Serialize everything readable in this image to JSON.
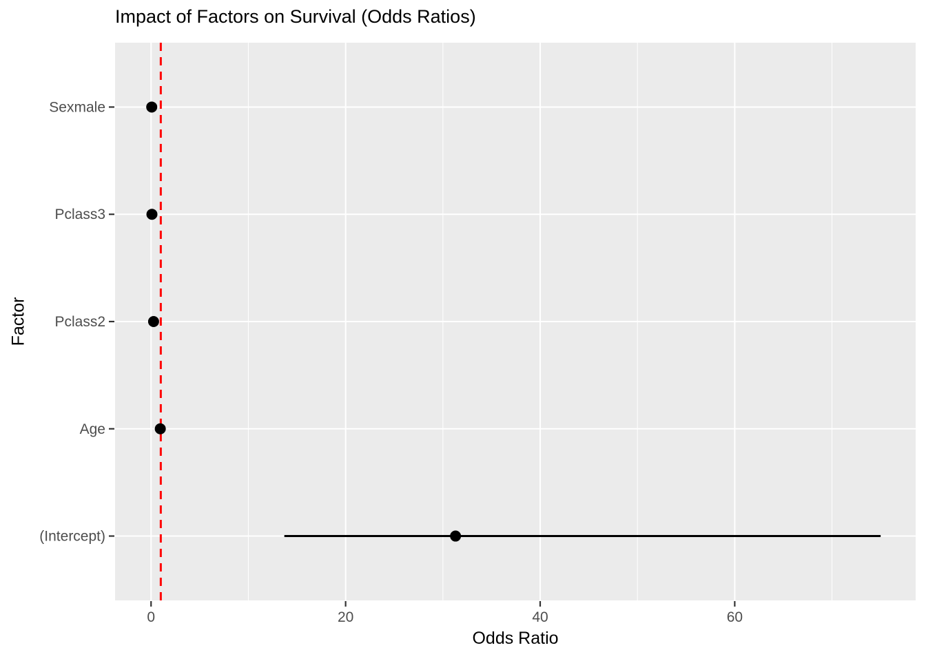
{
  "chart_data": {
    "type": "scatter",
    "chart_style": "forest-plot-dot-and-whisker",
    "title": "Impact of Factors on Survival (Odds Ratios)",
    "xlabel": "Odds Ratio",
    "ylabel": "Factor",
    "categories_bottom_to_top": [
      "(Intercept)",
      "Age",
      "Pclass2",
      "Pclass3",
      "Sexmale"
    ],
    "points": [
      {
        "factor": "(Intercept)",
        "odds_ratio": 31.3,
        "ci_low": 13.7,
        "ci_high": 75.0
      },
      {
        "factor": "Age",
        "odds_ratio": 0.95,
        "ci_low": null,
        "ci_high": null
      },
      {
        "factor": "Pclass2",
        "odds_ratio": 0.26,
        "ci_low": null,
        "ci_high": null
      },
      {
        "factor": "Pclass3",
        "odds_ratio": 0.09,
        "ci_low": null,
        "ci_high": null
      },
      {
        "factor": "Sexmale",
        "odds_ratio": 0.07,
        "ci_low": null,
        "ci_high": null
      }
    ],
    "x_major_ticks": [
      0,
      20,
      40,
      60
    ],
    "x_minor_ticks": [
      10,
      30,
      50,
      70
    ],
    "xlim": [
      -3.7,
      78.6
    ],
    "reference_line": {
      "x": 1,
      "style": "dashed"
    },
    "legend_position": "none",
    "grid": true,
    "colors": {
      "page_background": "#FFFFFF",
      "panel_background": "#EBEBEB",
      "grid": "#FFFFFF",
      "point": "#000000",
      "ci_line": "#000000",
      "reference_line": "#FF0000",
      "tick_mark": "#333333",
      "tick_label": "#4D4D4D",
      "axis_title": "#000000",
      "title": "#000000"
    }
  }
}
